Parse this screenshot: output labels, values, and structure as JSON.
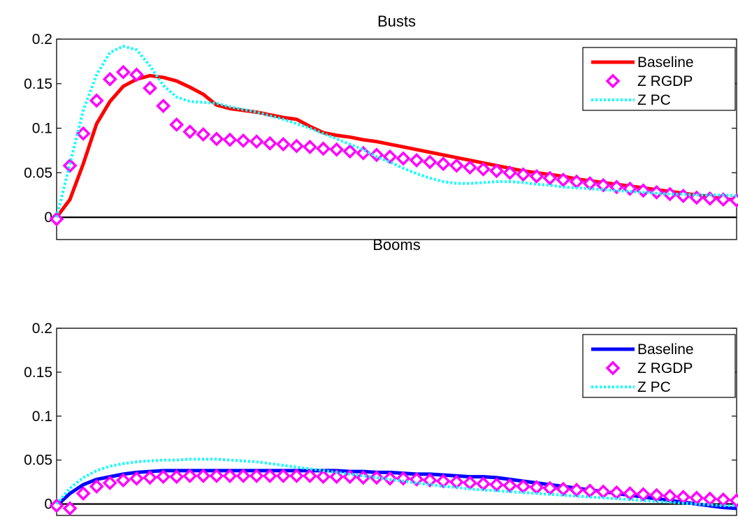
{
  "chart_data": [
    {
      "type": "line",
      "title": "Busts",
      "xlabel": "",
      "ylabel": "",
      "ylim": [
        -0.025,
        0.2
      ],
      "xlim": [
        0,
        51
      ],
      "yticks": [
        0,
        0.05,
        0.1,
        0.15,
        0.2
      ],
      "ytick_labels": [
        "0",
        "0.05",
        "0.1",
        "0.15",
        "0.2"
      ],
      "grid": false,
      "legend": "top-right",
      "zero_line": true,
      "series": [
        {
          "name": "Baseline",
          "style": "solid",
          "color": "#ff0000",
          "x": [
            0,
            1,
            2,
            3,
            4,
            5,
            6,
            7,
            8,
            9,
            10,
            11,
            12,
            13,
            14,
            15,
            16,
            17,
            18,
            19,
            20,
            21,
            22,
            23,
            24,
            25,
            26,
            27,
            28,
            29,
            30,
            31,
            32,
            33,
            34,
            35,
            36,
            37,
            38,
            39,
            40,
            41,
            42,
            43,
            44,
            45,
            46,
            47,
            48,
            49,
            50,
            51
          ],
          "values": [
            0.0,
            0.02,
            0.06,
            0.105,
            0.13,
            0.147,
            0.155,
            0.159,
            0.157,
            0.153,
            0.146,
            0.138,
            0.126,
            0.122,
            0.12,
            0.118,
            0.115,
            0.112,
            0.11,
            0.102,
            0.095,
            0.092,
            0.09,
            0.087,
            0.085,
            0.082,
            0.079,
            0.076,
            0.073,
            0.07,
            0.067,
            0.064,
            0.061,
            0.058,
            0.055,
            0.052,
            0.05,
            0.048,
            0.046,
            0.043,
            0.041,
            0.039,
            0.037,
            0.035,
            0.033,
            0.031,
            0.029,
            0.027,
            0.025,
            0.023,
            0.021,
            0.019
          ]
        },
        {
          "name": "Z RGDP",
          "style": "diamond",
          "color": "#ff00ff",
          "x": [
            0,
            1,
            2,
            3,
            4,
            5,
            6,
            7,
            8,
            9,
            10,
            11,
            12,
            13,
            14,
            15,
            16,
            17,
            18,
            19,
            20,
            21,
            22,
            23,
            24,
            25,
            26,
            27,
            28,
            29,
            30,
            31,
            32,
            33,
            34,
            35,
            36,
            37,
            38,
            39,
            40,
            41,
            42,
            43,
            44,
            45,
            46,
            47,
            48,
            49,
            50,
            51
          ],
          "values": [
            -0.002,
            0.058,
            0.094,
            0.131,
            0.155,
            0.163,
            0.16,
            0.145,
            0.125,
            0.104,
            0.096,
            0.093,
            0.088,
            0.087,
            0.086,
            0.085,
            0.083,
            0.082,
            0.08,
            0.079,
            0.077,
            0.076,
            0.074,
            0.072,
            0.07,
            0.068,
            0.066,
            0.064,
            0.062,
            0.06,
            0.058,
            0.056,
            0.054,
            0.052,
            0.05,
            0.048,
            0.046,
            0.044,
            0.042,
            0.04,
            0.038,
            0.036,
            0.034,
            0.032,
            0.03,
            0.028,
            0.026,
            0.024,
            0.022,
            0.021,
            0.02,
            0.019
          ]
        },
        {
          "name": "Z PC",
          "style": "dotted",
          "color": "#00ffff",
          "x": [
            0,
            1,
            2,
            3,
            4,
            5,
            6,
            7,
            8,
            9,
            10,
            11,
            12,
            13,
            14,
            15,
            16,
            17,
            18,
            19,
            20,
            21,
            22,
            23,
            24,
            25,
            26,
            27,
            28,
            29,
            30,
            31,
            32,
            33,
            34,
            35,
            36,
            37,
            38,
            39,
            40,
            41,
            42,
            43,
            44,
            45,
            46,
            47,
            48,
            49,
            50,
            51
          ],
          "values": [
            0.0,
            0.06,
            0.12,
            0.16,
            0.185,
            0.192,
            0.188,
            0.17,
            0.148,
            0.135,
            0.13,
            0.129,
            0.128,
            0.124,
            0.121,
            0.118,
            0.114,
            0.11,
            0.105,
            0.1,
            0.094,
            0.088,
            0.082,
            0.076,
            0.068,
            0.062,
            0.055,
            0.049,
            0.044,
            0.04,
            0.038,
            0.038,
            0.039,
            0.04,
            0.04,
            0.039,
            0.037,
            0.036,
            0.034,
            0.033,
            0.032,
            0.031,
            0.03,
            0.029,
            0.028,
            0.027,
            0.026,
            0.026,
            0.025,
            0.025,
            0.025,
            0.024
          ]
        }
      ]
    },
    {
      "type": "line",
      "title": "Booms",
      "xlabel": "",
      "ylabel": "",
      "ylim": [
        -0.013,
        0.2
      ],
      "xlim": [
        0,
        51
      ],
      "yticks": [
        0,
        0.05,
        0.1,
        0.15,
        0.2
      ],
      "ytick_labels": [
        "0",
        "0.05",
        "0.1",
        "0.15",
        "0.2"
      ],
      "grid": false,
      "legend": "top-right",
      "zero_line": true,
      "series": [
        {
          "name": "Baseline",
          "style": "solid",
          "color": "#0000ff",
          "x": [
            0,
            1,
            2,
            3,
            4,
            5,
            6,
            7,
            8,
            9,
            10,
            11,
            12,
            13,
            14,
            15,
            16,
            17,
            18,
            19,
            20,
            21,
            22,
            23,
            24,
            25,
            26,
            27,
            28,
            29,
            30,
            31,
            32,
            33,
            34,
            35,
            36,
            37,
            38,
            39,
            40,
            41,
            42,
            43,
            44,
            45,
            46,
            47,
            48,
            49,
            50,
            51
          ],
          "values": [
            -0.002,
            0.012,
            0.022,
            0.028,
            0.031,
            0.034,
            0.036,
            0.037,
            0.038,
            0.038,
            0.038,
            0.038,
            0.038,
            0.038,
            0.038,
            0.038,
            0.038,
            0.038,
            0.038,
            0.038,
            0.038,
            0.038,
            0.037,
            0.037,
            0.036,
            0.036,
            0.035,
            0.034,
            0.034,
            0.033,
            0.032,
            0.031,
            0.031,
            0.03,
            0.028,
            0.026,
            0.024,
            0.022,
            0.02,
            0.018,
            0.016,
            0.014,
            0.012,
            0.01,
            0.008,
            0.006,
            0.004,
            0.002,
            0.0,
            -0.002,
            -0.004,
            -0.005
          ]
        },
        {
          "name": "Z RGDP",
          "style": "diamond",
          "color": "#ff00ff",
          "x": [
            0,
            1,
            2,
            3,
            4,
            5,
            6,
            7,
            8,
            9,
            10,
            11,
            12,
            13,
            14,
            15,
            16,
            17,
            18,
            19,
            20,
            21,
            22,
            23,
            24,
            25,
            26,
            27,
            28,
            29,
            30,
            31,
            32,
            33,
            34,
            35,
            36,
            37,
            38,
            39,
            40,
            41,
            42,
            43,
            44,
            45,
            46,
            47,
            48,
            49,
            50,
            51
          ],
          "values": [
            -0.002,
            -0.005,
            0.012,
            0.02,
            0.024,
            0.027,
            0.029,
            0.03,
            0.031,
            0.031,
            0.032,
            0.032,
            0.032,
            0.032,
            0.032,
            0.032,
            0.032,
            0.032,
            0.032,
            0.032,
            0.031,
            0.031,
            0.031,
            0.03,
            0.03,
            0.029,
            0.029,
            0.028,
            0.027,
            0.026,
            0.025,
            0.024,
            0.023,
            0.022,
            0.021,
            0.02,
            0.019,
            0.018,
            0.017,
            0.016,
            0.015,
            0.014,
            0.013,
            0.012,
            0.011,
            0.01,
            0.009,
            0.008,
            0.007,
            0.006,
            0.005,
            0.004
          ]
        },
        {
          "name": "Z PC",
          "style": "dotted",
          "color": "#00ffff",
          "x": [
            0,
            1,
            2,
            3,
            4,
            5,
            6,
            7,
            8,
            9,
            10,
            11,
            12,
            13,
            14,
            15,
            16,
            17,
            18,
            19,
            20,
            21,
            22,
            23,
            24,
            25,
            26,
            27,
            28,
            29,
            30,
            31,
            32,
            33,
            34,
            35,
            36,
            37,
            38,
            39,
            40,
            41,
            42,
            43,
            44,
            45,
            46,
            47,
            48,
            49,
            50,
            51
          ],
          "values": [
            0.0,
            0.018,
            0.03,
            0.038,
            0.043,
            0.046,
            0.048,
            0.049,
            0.05,
            0.05,
            0.051,
            0.051,
            0.051,
            0.05,
            0.049,
            0.048,
            0.046,
            0.044,
            0.042,
            0.04,
            0.038,
            0.036,
            0.034,
            0.032,
            0.03,
            0.028,
            0.026,
            0.024,
            0.022,
            0.02,
            0.019,
            0.017,
            0.016,
            0.015,
            0.014,
            0.013,
            0.012,
            0.011,
            0.01,
            0.009,
            0.008,
            0.007,
            0.006,
            0.005,
            0.004,
            0.003,
            0.002,
            0.001,
            0.0,
            -0.001,
            -0.002,
            -0.002
          ]
        }
      ]
    }
  ]
}
